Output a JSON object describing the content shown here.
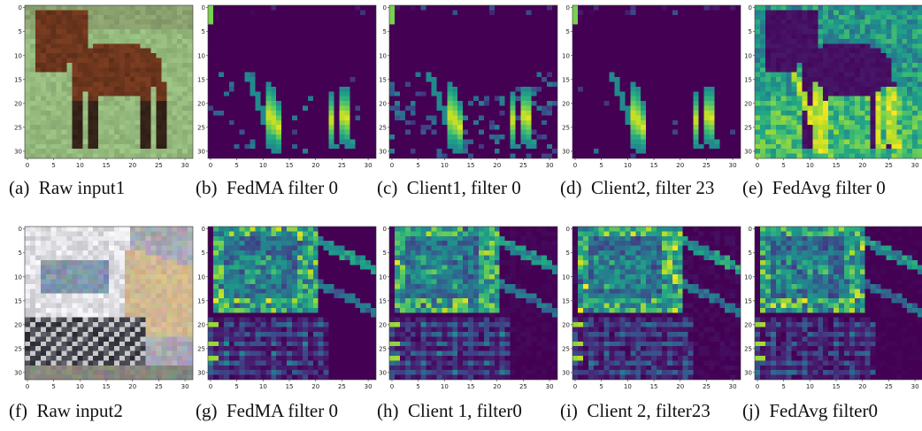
{
  "figure": {
    "tick_labels": [
      "0",
      "5",
      "10",
      "15",
      "20",
      "25",
      "30"
    ],
    "panels": [
      {
        "id": "a",
        "caption": "(a)  Raw input1",
        "kind": "horse"
      },
      {
        "id": "b",
        "caption": "(b)  FedMA filter 0",
        "kind": "horse-sparse"
      },
      {
        "id": "c",
        "caption": "(c)  Client1, filter 0",
        "kind": "horse-med"
      },
      {
        "id": "d",
        "caption": "(d)  Client2, filter 23",
        "kind": "horse-sparser"
      },
      {
        "id": "e",
        "caption": "(e)  FedAvg filter 0",
        "kind": "horse-dense"
      },
      {
        "id": "f",
        "caption": "(f)  Raw input2",
        "kind": "truck"
      },
      {
        "id": "g",
        "caption": "(g)  FedMA filter 0",
        "kind": "truck-a"
      },
      {
        "id": "h",
        "caption": "(h)  Client 1, filter0",
        "kind": "truck-b"
      },
      {
        "id": "i",
        "caption": "(i)  Client 2, filter23",
        "kind": "truck-c"
      },
      {
        "id": "j",
        "caption": "(j)  FedAvg filter0",
        "kind": "truck-d"
      }
    ]
  },
  "colors": {
    "viridis_low": "#440154",
    "viridis_high": "#fde725"
  }
}
